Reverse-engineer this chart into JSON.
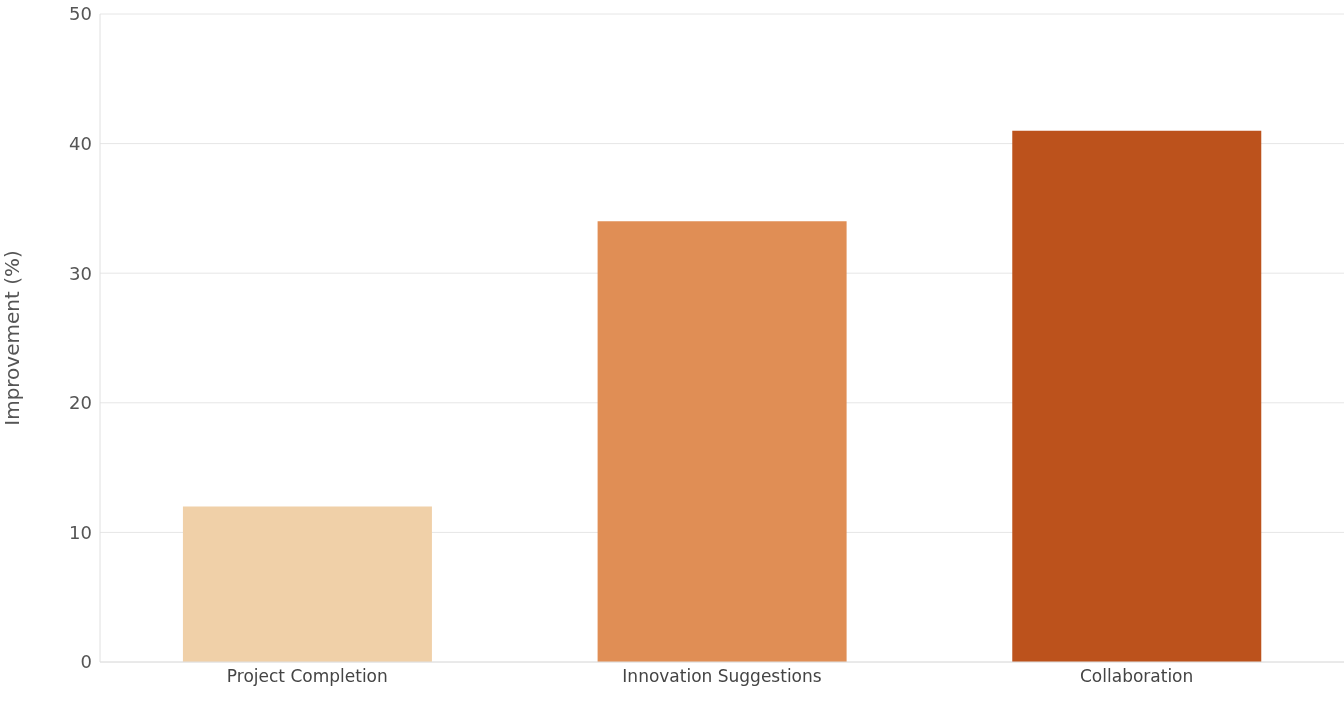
{
  "chart_data": {
    "type": "bar",
    "ylabel": "Improvement (%)",
    "categories": [
      "Project Completion",
      "Innovation Suggestions",
      "Collaboration"
    ],
    "values": [
      12,
      34,
      41
    ],
    "colors": [
      "#f0d0a8",
      "#e08e55",
      "#bc521c"
    ],
    "ylim": [
      0,
      50
    ],
    "yticks": [
      0,
      10,
      20,
      30,
      40,
      50
    ],
    "grid": "y"
  }
}
